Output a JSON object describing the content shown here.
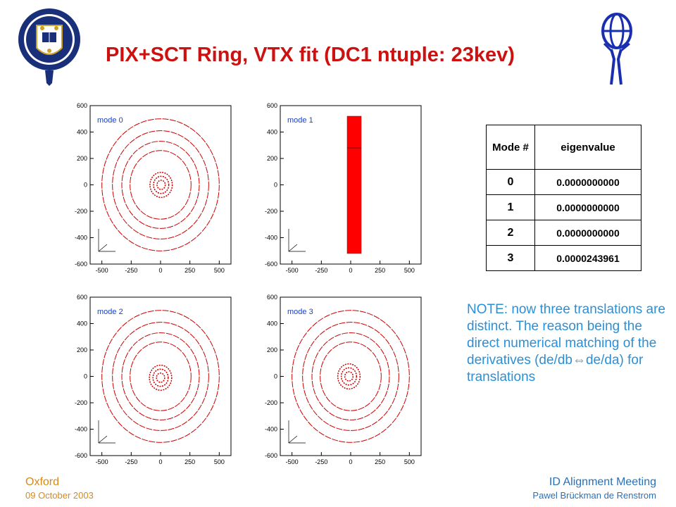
{
  "title": "PIX+SCT Ring, VTX fit  (DC1 ntuple: 23kev)",
  "logo_left": "oxford-crest-icon",
  "logo_right": "atlas-logo-icon",
  "plots": [
    {
      "mode_label": "mode 0",
      "kind": "rings",
      "inner_dx": 5,
      "inner_dy": 0
    },
    {
      "mode_label": "mode 1",
      "kind": "bar"
    },
    {
      "mode_label": "mode 2",
      "kind": "rings",
      "inner_dx": 0,
      "inner_dy": -10
    },
    {
      "mode_label": "mode 3",
      "kind": "rings",
      "inner_dx": -15,
      "inner_dy": 0
    }
  ],
  "axes": {
    "x_ticks": [
      "-500",
      "-250",
      "0",
      "250",
      "500"
    ],
    "y_ticks": [
      "600",
      "400",
      "200",
      "0",
      "-200",
      "-400",
      "-600"
    ]
  },
  "table": {
    "header_mode": "Mode #",
    "header_value": "eigenvalue",
    "rows": [
      {
        "mode": "0",
        "value": "0.0000000000"
      },
      {
        "mode": "1",
        "value": "0.0000000000"
      },
      {
        "mode": "2",
        "value": "0.0000000000"
      },
      {
        "mode": "3",
        "value": "0.0000243961"
      }
    ]
  },
  "note": "NOTE: now three translations are distinct. The reason being the direct numerical matching of the derivatives (de/db⇔de/da) for translations",
  "footer": {
    "place": "Oxford",
    "date": "09 October 2003",
    "meeting": "ID Alignment Meeting",
    "author": "Pawel Brückman de Renstrom"
  },
  "colors": {
    "title": "#cc1111",
    "note": "#2b8fd6",
    "footer_left": "#d68a1a",
    "footer_right": "#2b6fb6",
    "plot_red": "#cc0000"
  }
}
